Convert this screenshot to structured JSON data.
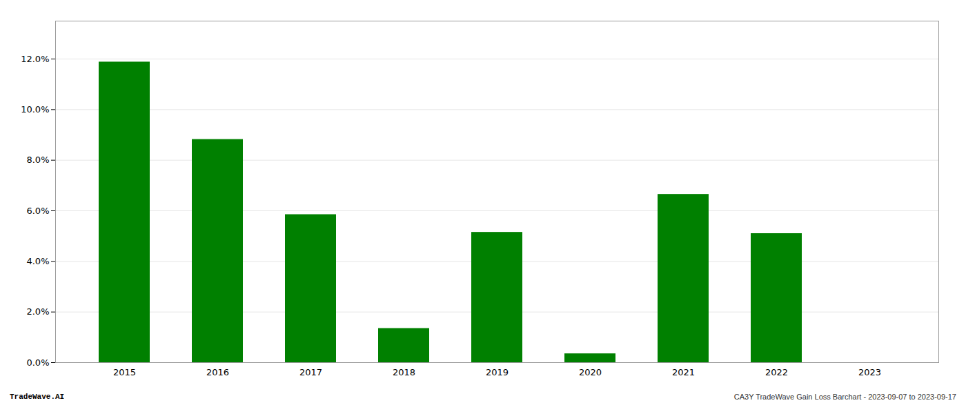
{
  "chart_data": {
    "type": "bar",
    "categories": [
      "2015",
      "2016",
      "2017",
      "2018",
      "2019",
      "2020",
      "2021",
      "2022",
      "2023"
    ],
    "values": [
      0.1188,
      0.0882,
      0.0585,
      0.0135,
      0.0515,
      0.0035,
      0.0665,
      0.051,
      0.0
    ],
    "color": "#008000",
    "ylim": [
      0,
      0.135
    ],
    "yticks": [
      {
        "value": 0.0,
        "label": "0.0%"
      },
      {
        "value": 0.02,
        "label": "2.0%"
      },
      {
        "value": 0.04,
        "label": "4.0%"
      },
      {
        "value": 0.06,
        "label": "6.0%"
      },
      {
        "value": 0.08,
        "label": "8.0%"
      },
      {
        "value": 0.1,
        "label": "10.0%"
      },
      {
        "value": 0.12,
        "label": "12.0%"
      }
    ],
    "grid": true,
    "annotations": [
      "TradeWave.AI",
      "CA3Y TradeWave Gain Loss Barchart - 2023-09-07 to 2023-09-17"
    ]
  }
}
